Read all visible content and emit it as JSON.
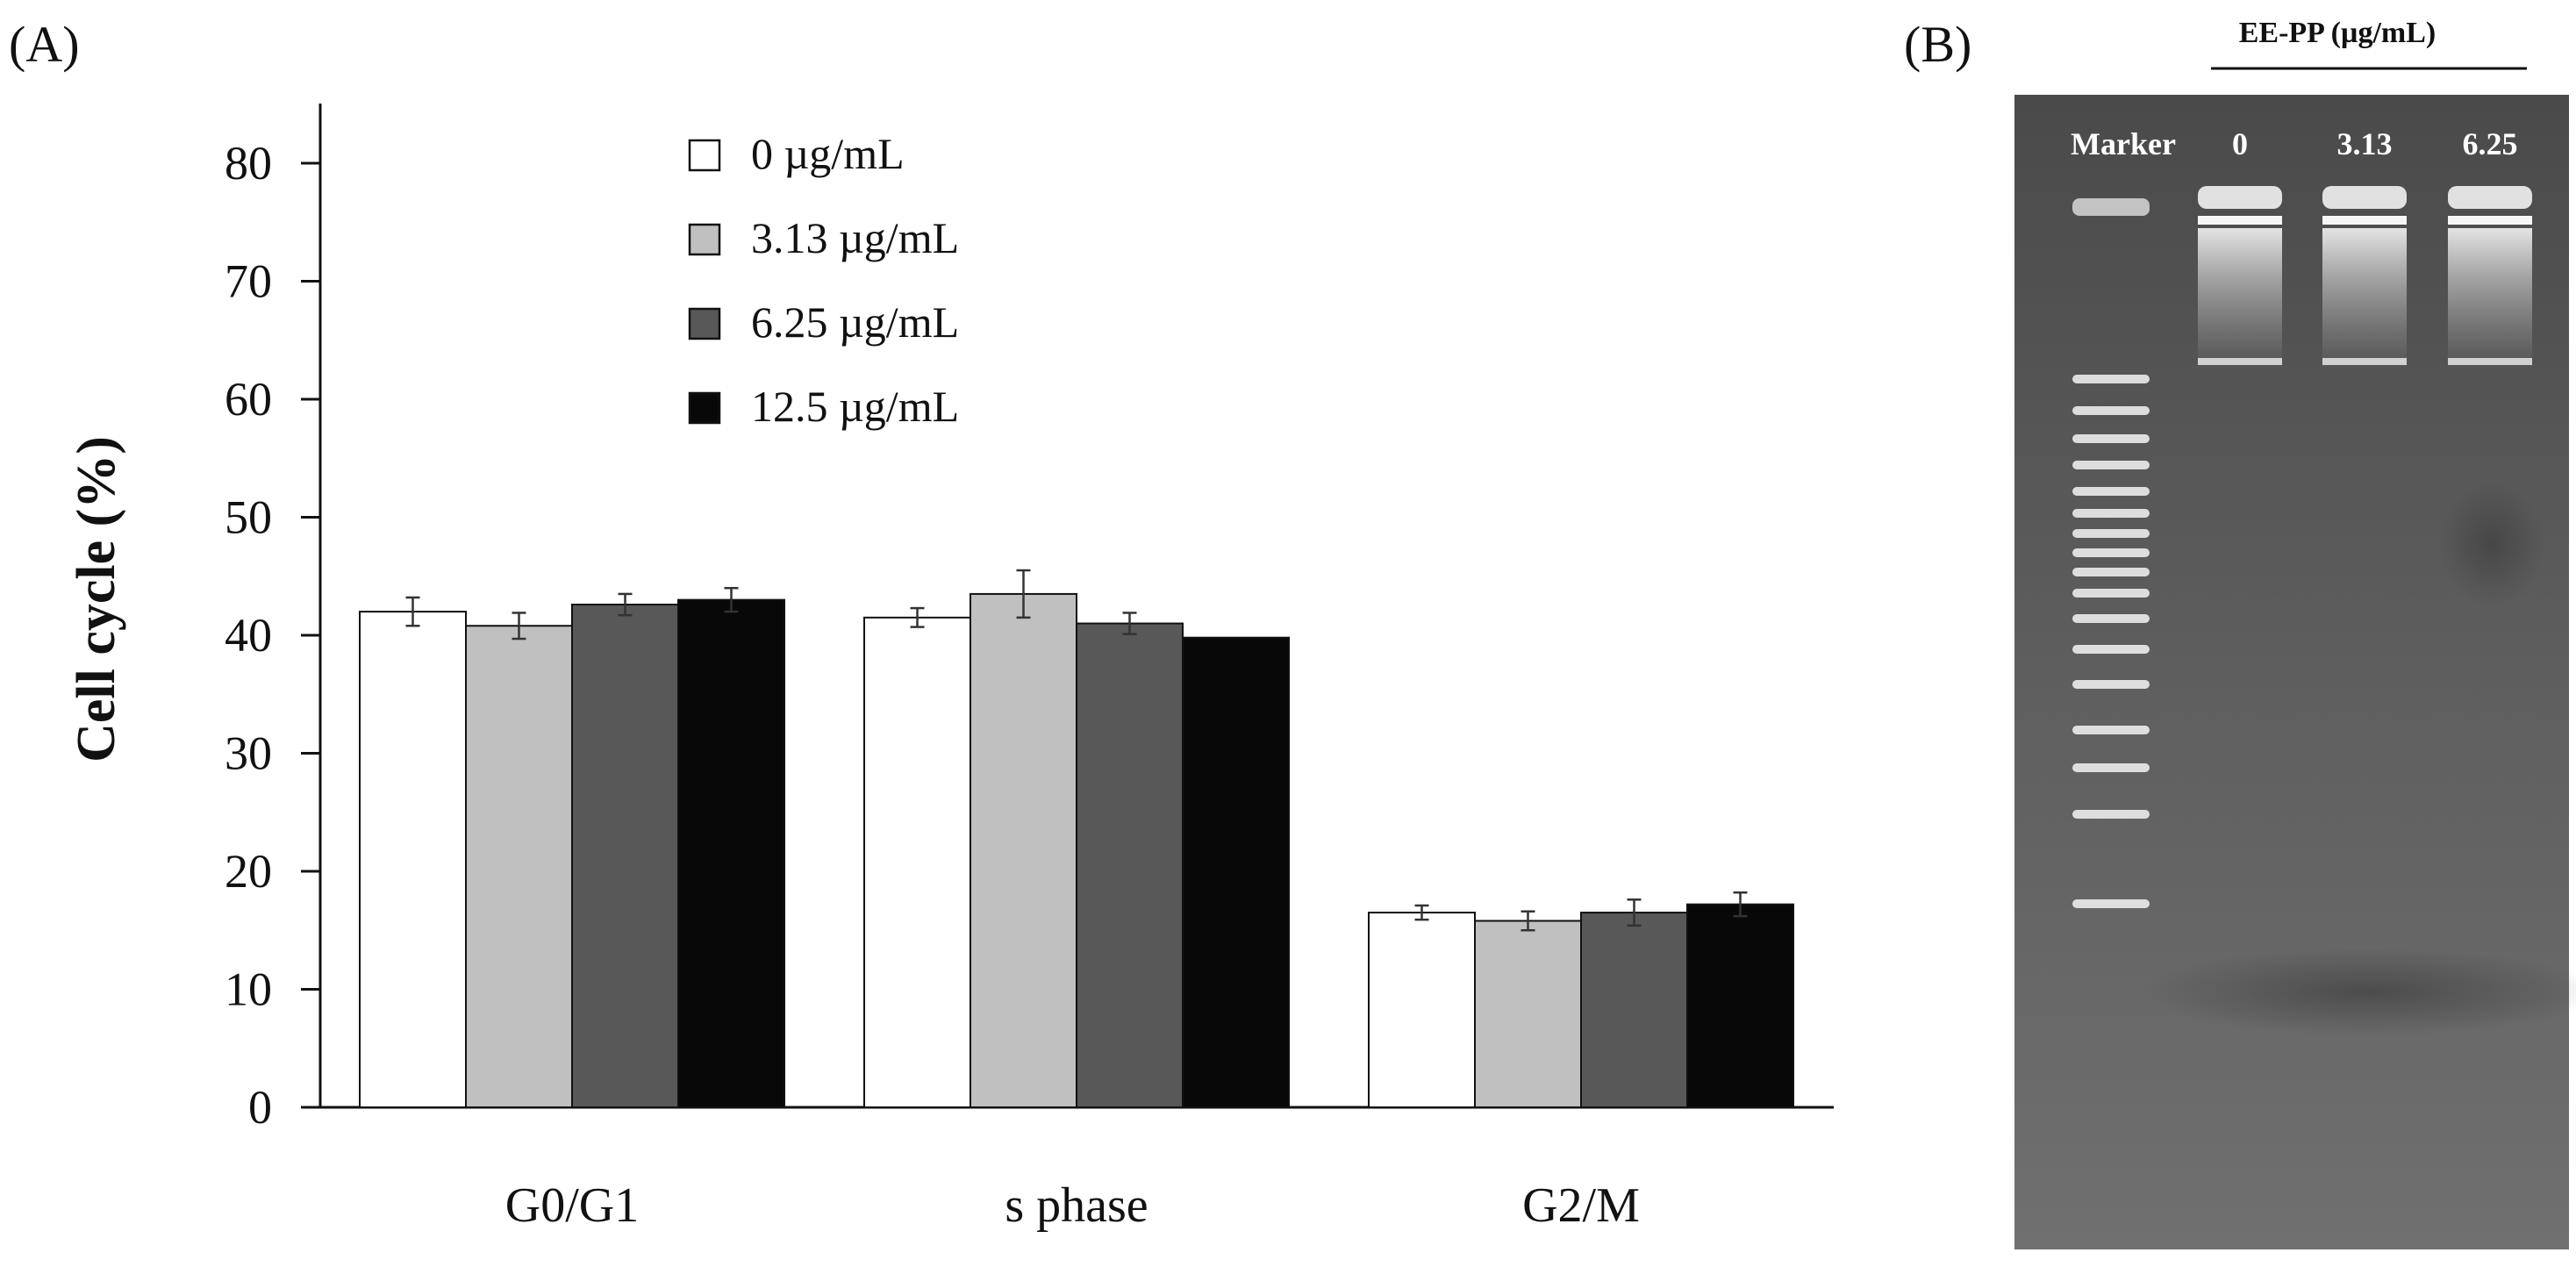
{
  "panel_a_label": "(A)",
  "panel_b_label": "(B)",
  "chart_data": {
    "type": "bar",
    "title": "",
    "xlabel": "",
    "ylabel": "Cell cycle (%)",
    "ylim": [
      0,
      85
    ],
    "yticks": [
      0,
      10,
      20,
      30,
      40,
      50,
      60,
      70,
      80
    ],
    "legend_position": "top-center",
    "categories": [
      "G0/G1",
      "s phase",
      "G2/M"
    ],
    "series": [
      {
        "name": "0 µg/mL",
        "color": "#ffffff",
        "values": [
          42.0,
          41.5,
          16.5
        ],
        "errors": [
          1.2,
          0.8,
          0.6
        ]
      },
      {
        "name": "3.13 µg/mL",
        "color": "#c0c0c0",
        "values": [
          40.8,
          43.5,
          15.8
        ],
        "errors": [
          1.1,
          2.0,
          0.8
        ]
      },
      {
        "name": "6.25 µg/mL",
        "color": "#585858",
        "values": [
          42.6,
          41.0,
          16.5
        ],
        "errors": [
          0.9,
          0.9,
          1.1
        ]
      },
      {
        "name": "12.5 µg/mL",
        "color": "#080808",
        "values": [
          43.0,
          39.8,
          17.2
        ],
        "errors": [
          1.0,
          0.0,
          1.0
        ]
      }
    ]
  },
  "gel": {
    "title": "EE-PP (µg/mL)",
    "lane_labels": [
      "Marker",
      "0",
      "3.13",
      "6.25"
    ]
  }
}
